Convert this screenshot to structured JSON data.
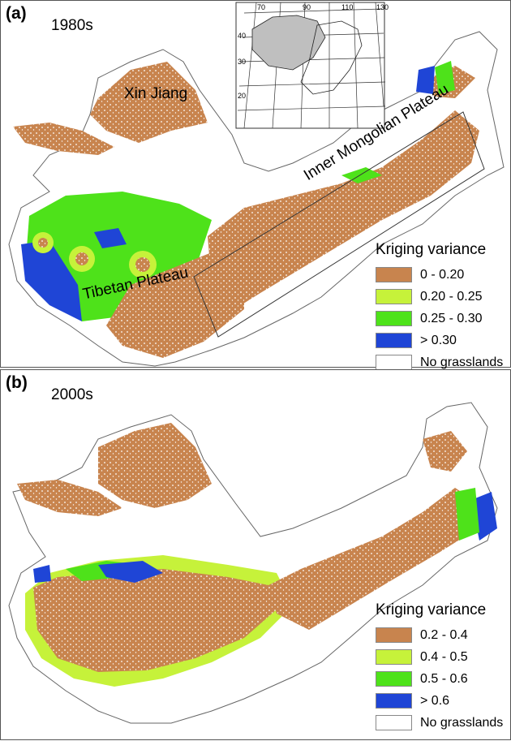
{
  "panels": [
    {
      "label": "(a)",
      "decade": "1980s",
      "regions": [
        "Xin Jiang",
        "Tibetan Plateau",
        "Inner Mongolian Plateau"
      ],
      "legend": {
        "title": "Kriging variance",
        "items": [
          {
            "label": "0 - 0.20",
            "color": "#c8844e"
          },
          {
            "label": "0.20 - 0.25",
            "color": "#c6f23a"
          },
          {
            "label": "0.25 - 0.30",
            "color": "#4ee21a"
          },
          {
            "label": "> 0.30",
            "color": "#1f45d6"
          },
          {
            "label": "No grasslands",
            "color": "#ffffff"
          }
        ]
      },
      "inset_lon_labels": [
        "70",
        "90",
        "110",
        "130"
      ],
      "inset_lat_labels": [
        "40",
        "30",
        "20"
      ]
    },
    {
      "label": "(b)",
      "decade": "2000s",
      "legend": {
        "title": "Kriging variance",
        "items": [
          {
            "label": "0.2 - 0.4",
            "color": "#c8844e"
          },
          {
            "label": "0.4 - 0.5",
            "color": "#c6f23a"
          },
          {
            "label": "0.5 - 0.6",
            "color": "#4ee21a"
          },
          {
            "label": "> 0.6",
            "color": "#1f45d6"
          },
          {
            "label": "No grasslands",
            "color": "#ffffff"
          }
        ]
      }
    }
  ]
}
